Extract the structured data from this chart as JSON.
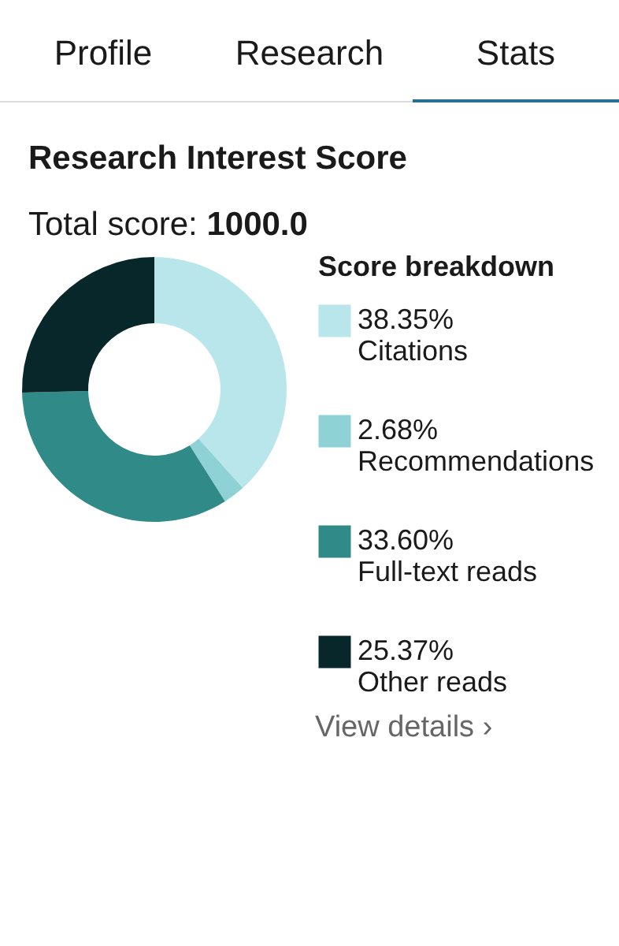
{
  "chart_data": {
    "type": "donut",
    "title": "Research Interest Score",
    "subtitle": "Total score: 1000.0",
    "legend_title": "Score breakdown",
    "categories": [
      "Citations",
      "Recommendations",
      "Full-text reads",
      "Other reads"
    ],
    "values": [
      38.35,
      2.68,
      33.6,
      25.37
    ],
    "value_labels": [
      "38.35%",
      "2.68%",
      "33.60%",
      "25.37%"
    ],
    "colors": [
      "#b9e6ea",
      "#8ed2d6",
      "#2f8a88",
      "#08272b"
    ],
    "legend": "right",
    "annotations": [
      "Profile",
      "Research",
      "Stats",
      "View details ›"
    ]
  }
}
